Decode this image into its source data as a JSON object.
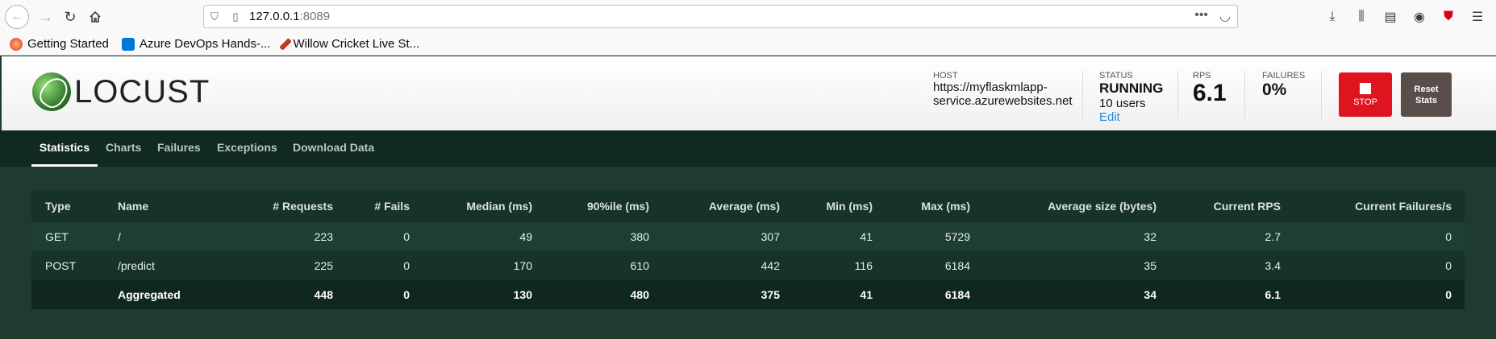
{
  "browser": {
    "url_host": "127.0.0.1",
    "url_port": ":8089",
    "bookmarks": [
      "Getting Started",
      "Azure DevOps Hands-...",
      "Willow Cricket Live St..."
    ]
  },
  "header": {
    "logo_text": "LOCUST",
    "host_label": "HOST",
    "host_value": "https://myflaskmlapp-service.azurewebsites.net",
    "status_label": "STATUS",
    "status_value": "RUNNING",
    "users": "10 users",
    "edit_label": "Edit",
    "rps_label": "RPS",
    "rps_value": "6.1",
    "failures_label": "FAILURES",
    "failures_value": "0%",
    "stop_label": "STOP",
    "reset_label": "Reset Stats",
    "colors": {
      "stop": "#e0141e",
      "reset": "#5a4e4a"
    }
  },
  "tabs": [
    {
      "label": "Statistics",
      "active": true
    },
    {
      "label": "Charts",
      "active": false
    },
    {
      "label": "Failures",
      "active": false
    },
    {
      "label": "Exceptions",
      "active": false
    },
    {
      "label": "Download Data",
      "active": false
    }
  ],
  "table": {
    "columns": [
      "Type",
      "Name",
      "# Requests",
      "# Fails",
      "Median (ms)",
      "90%ile (ms)",
      "Average (ms)",
      "Min (ms)",
      "Max (ms)",
      "Average size (bytes)",
      "Current RPS",
      "Current Failures/s"
    ],
    "rows": [
      [
        "GET",
        "/",
        "223",
        "0",
        "49",
        "380",
        "307",
        "41",
        "5729",
        "32",
        "2.7",
        "0"
      ],
      [
        "POST",
        "/predict",
        "225",
        "0",
        "170",
        "610",
        "442",
        "116",
        "6184",
        "35",
        "3.4",
        "0"
      ]
    ],
    "aggregated": [
      "",
      "Aggregated",
      "448",
      "0",
      "130",
      "480",
      "375",
      "41",
      "6184",
      "34",
      "6.1",
      "0"
    ]
  }
}
